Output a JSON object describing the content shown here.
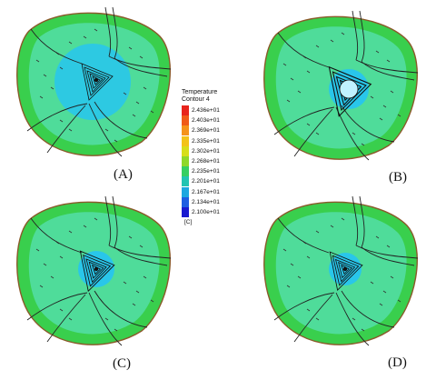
{
  "panels": [
    {
      "label": "(A)",
      "core": "large"
    },
    {
      "label": "(B)",
      "core": "hot"
    },
    {
      "label": "(C)",
      "core": "medium"
    },
    {
      "label": "(D)",
      "core": "medium"
    }
  ],
  "legend": {
    "title_line1": "Temperature",
    "title_line2": "Contour 4",
    "unit": "[C]",
    "levels": [
      {
        "value": "2.436e+01",
        "color": "#e8241c"
      },
      {
        "value": "2.403e+01",
        "color": "#f05a18"
      },
      {
        "value": "2.369e+01",
        "color": "#f5931a"
      },
      {
        "value": "2.335e+01",
        "color": "#f3c318"
      },
      {
        "value": "2.302e+01",
        "color": "#d7de1a"
      },
      {
        "value": "2.268e+01",
        "color": "#8fd82a"
      },
      {
        "value": "2.235e+01",
        "color": "#36cf62"
      },
      {
        "value": "2.201e+01",
        "color": "#22c4b2"
      },
      {
        "value": "2.167e+01",
        "color": "#1ea8e0"
      },
      {
        "value": "2.134e+01",
        "color": "#1f5fe2"
      },
      {
        "value": "2.100e+01",
        "color": "#1a1ad0"
      }
    ]
  },
  "colors": {
    "rim": "#39cf4d",
    "body": "#4fdc9a",
    "cold_core": "#29c6ea",
    "hot_core": "#bff2ff",
    "outline": "#8a5a2a"
  }
}
